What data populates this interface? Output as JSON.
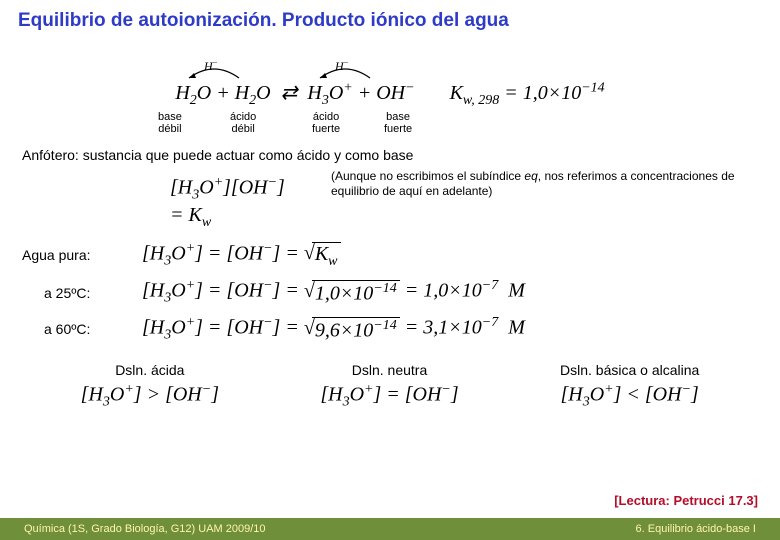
{
  "title": "Equilibrio de autoionización. Producto iónico del agua",
  "arrows": {
    "label1_html": "<i>H</i><sup>−</sup>",
    "label2_html": "<i>H</i><sup>−</sup>"
  },
  "main_eq_html": "H<span class='sub'>2</span>O + H<span class='sub'>2</span>O &nbsp;⇄&nbsp; H<span class='sub'>3</span>O<span class='sup'>+</span> + OH<span class='sup'>−</span> &nbsp;&nbsp;&nbsp;&nbsp;&nbsp; K<span class='sub'>w, 298</span> = 1,0×10<span class='sup'>−14</span>",
  "species_labels": {
    "a": "base\ndébil",
    "b": "ácido\ndébil",
    "c": "ácido\nfuerte",
    "d": "base\nfuerte"
  },
  "anfotero": "Anfótero: sustancia que puede actuar como ácido y como base",
  "note_html": "(Aunque no escribimos el subíndice <i>eq</i>, nos referimos a concentraciones de equilibrio de aquí en adelante)",
  "agua_pura": {
    "label": "Agua pura:",
    "kw_html": "[H<span class='sub'>3</span>O<span class='sup'>+</span>][OH<span class='sup'>−</span>] = K<span class='sub'>w</span>",
    "equal_html": "[H<span class='sub'>3</span>O<span class='sup'>+</span>] = [OH<span class='sup'>−</span>] = <span class='sqrt-container'><span class='sqrt-sign'>√</span><span class='sqrt-body'>K<span class='sub'>w</span></span></span>"
  },
  "temp25": {
    "label": "a 25ºC:",
    "expr_html": "[H<span class='sub'>3</span>O<span class='sup'>+</span>] = [OH<span class='sup'>−</span>] = <span class='sqrt-container'><span class='sqrt-sign'>√</span><span class='sqrt-body'>1,0×10<span class='sup'>−14</span></span></span> = 1,0×10<span class='sup'>−7</span> &nbsp;M"
  },
  "temp60": {
    "label": "a 60ºC:",
    "expr_html": "[H<span class='sub'>3</span>O<span class='sup'>+</span>] = [OH<span class='sup'>−</span>] = <span class='sqrt-container'><span class='sqrt-sign'>√</span><span class='sqrt-body'>9,6×10<span class='sup'>−14</span></span></span> = 3,1×10<span class='sup'>−7</span> &nbsp;M"
  },
  "triples": {
    "acida": {
      "title": "Dsln. ácida",
      "expr_html": "[H<span class='sub'>3</span>O<span class='sup'>+</span>] &gt; [OH<span class='sup'>−</span>]"
    },
    "neutra": {
      "title": "Dsln. neutra",
      "expr_html": "[H<span class='sub'>3</span>O<span class='sup'>+</span>] = [OH<span class='sup'>−</span>]"
    },
    "basica": {
      "title": "Dsln. básica o alcalina",
      "expr_html": "[H<span class='sub'>3</span>O<span class='sup'>+</span>] &lt; [OH<span class='sup'>−</span>]"
    }
  },
  "lectura": "[Lectura: Petrucci 17.3]",
  "footer": {
    "left": "Química (1S, Grado Biología, G12) UAM 2009/10",
    "right": "6. Equilibrio ácido-base I"
  },
  "colors": {
    "title": "#2e3bc7",
    "lectura": "#b30d2a",
    "footer_bg": "#6f8f3a",
    "footer_text": "#fff4b0"
  }
}
